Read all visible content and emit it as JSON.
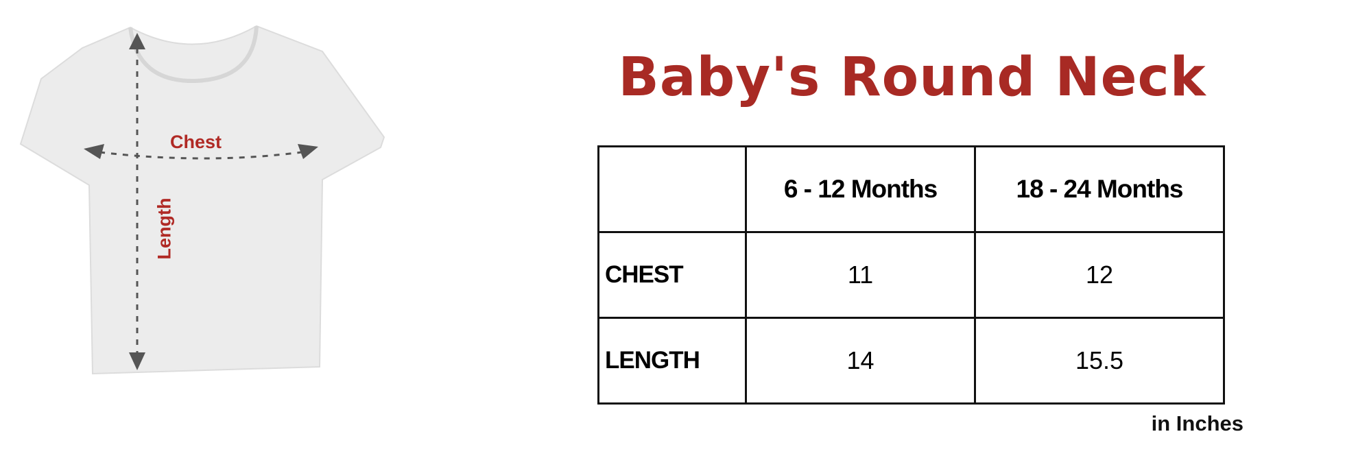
{
  "title": "Baby's Round Neck",
  "diagram": {
    "chest_label": "Chest",
    "length_label": "Length",
    "label_color": "#b02a25",
    "arrow_color": "#555555"
  },
  "table": {
    "headers": [
      "",
      "6 - 12 Months",
      "18 - 24 Months"
    ],
    "rows": [
      {
        "label": "CHEST",
        "values": [
          "11",
          "12"
        ]
      },
      {
        "label": "LENGTH",
        "values": [
          "14",
          "15.5"
        ]
      }
    ]
  },
  "unit_note": "in Inches",
  "colors": {
    "title": "#a82a24"
  }
}
